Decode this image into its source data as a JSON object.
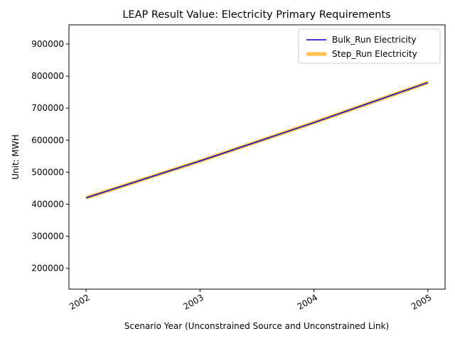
{
  "chart_data": {
    "type": "line",
    "title": "LEAP Result Value: Electricity Primary Requirements",
    "xlabel": "Scenario Year (Unconstrained Source and Unconstrained Link)",
    "ylabel": "Unit: MWH",
    "x": [
      2002,
      2003,
      2004,
      2005
    ],
    "x_tick_labels": [
      "2002",
      "2003",
      "2004",
      "2005"
    ],
    "xlim": [
      2001.85,
      2005.15
    ],
    "ylim": [
      135000,
      960000
    ],
    "y_ticks": [
      200000,
      300000,
      400000,
      500000,
      600000,
      700000,
      800000,
      900000
    ],
    "y_tick_labels": [
      "200000",
      "300000",
      "400000",
      "500000",
      "600000",
      "700000",
      "800000",
      "900000"
    ],
    "grid": false,
    "legend_placement": "top-right",
    "series": [
      {
        "name": "Bulk_Run Electricity",
        "color": "#0000cc",
        "values": [
          420000,
          535000,
          655000,
          780000
        ]
      },
      {
        "name": "Step_Run Electricity",
        "color": "#ffa500",
        "values": [
          420000,
          535000,
          655000,
          780000
        ]
      }
    ]
  }
}
